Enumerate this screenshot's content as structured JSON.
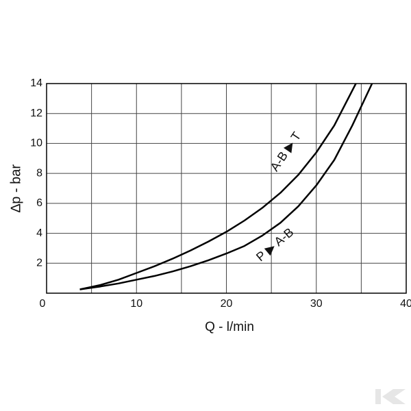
{
  "chart_data": {
    "type": "line",
    "x_label": "Q - l/min",
    "y_label": "∆p - bar",
    "xlim": [
      0,
      40
    ],
    "ylim": [
      0,
      14
    ],
    "xticks": [
      0,
      10,
      20,
      30,
      40
    ],
    "xminor": [
      5,
      15,
      25,
      35
    ],
    "yticks": [
      2,
      4,
      6,
      8,
      10,
      12,
      14
    ],
    "grid": true,
    "series": [
      {
        "name": "A-B ▶ T",
        "color": "#000000",
        "x": [
          3.7,
          6,
          8,
          10,
          12,
          14,
          16,
          18,
          20,
          22,
          24,
          26,
          28,
          30,
          32,
          34.4
        ],
        "values": [
          0.25,
          0.55,
          0.9,
          1.35,
          1.8,
          2.3,
          2.85,
          3.45,
          4.1,
          4.85,
          5.7,
          6.7,
          7.9,
          9.4,
          11.2,
          14
        ]
      },
      {
        "name": "P ▶ A-B",
        "color": "#000000",
        "x": [
          3.7,
          6,
          8,
          10,
          12,
          14,
          16,
          18,
          20,
          22,
          24,
          26,
          28,
          30,
          32,
          34,
          36.2
        ],
        "values": [
          0.25,
          0.45,
          0.65,
          0.9,
          1.15,
          1.45,
          1.8,
          2.2,
          2.65,
          3.15,
          3.85,
          4.7,
          5.8,
          7.2,
          8.9,
          11.2,
          14
        ]
      }
    ]
  }
}
